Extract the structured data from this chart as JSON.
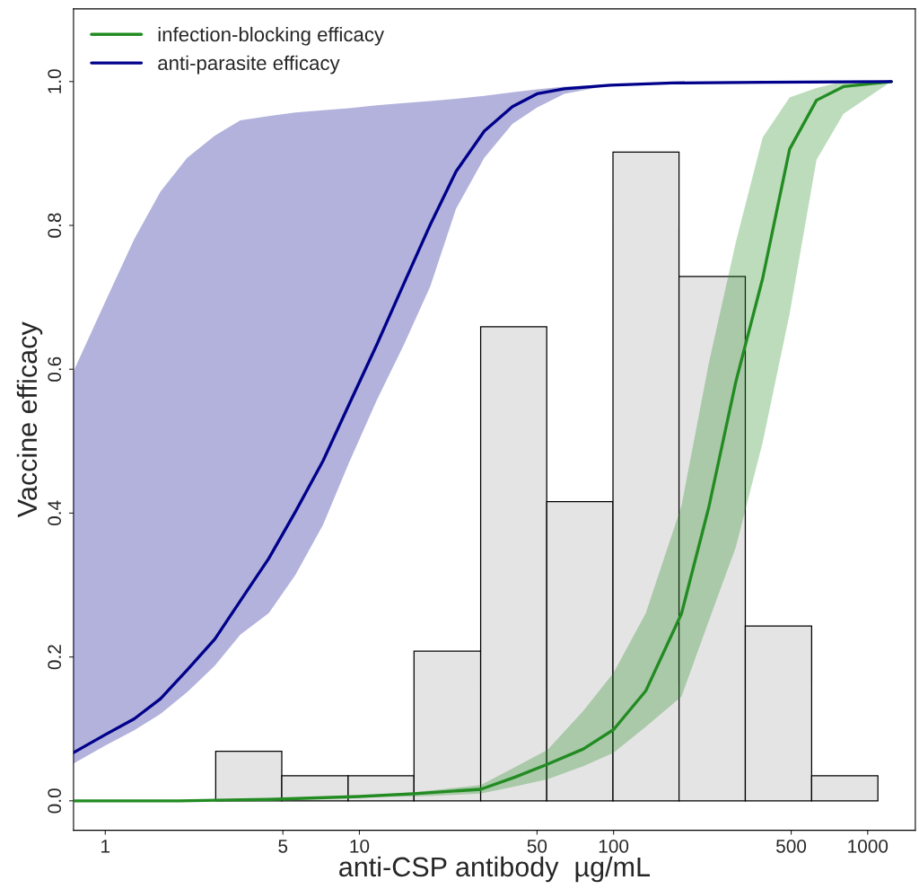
{
  "chart_data": {
    "type": "histogram",
    "xlabel": "anti-CSP antibody  µg/mL",
    "ylabel": "Vaccine efficacy",
    "log": "x",
    "grid": false,
    "legend": "top left",
    "color": "#e4e4e4",
    "bins": [
      2.72,
      4.95,
      9.03,
      16.4,
      30.0,
      54.6,
      99.5,
      181,
      330,
      602,
      1097
    ],
    "values": [
      0.069,
      0.035,
      0.035,
      0.208,
      0.659,
      0.416,
      0.902,
      0.729,
      0.243,
      0.035
    ],
    "xlim": [
      0.75,
      1540
    ],
    "ylim": [
      -0.041,
      1.101
    ],
    "xticks": [
      1,
      5,
      10,
      50,
      100,
      500,
      1000
    ],
    "yticks": [
      {
        "value": 0,
        "label": "0.0"
      },
      {
        "value": 0.2,
        "label": "0.2"
      },
      {
        "value": 0.4,
        "label": "0.4"
      },
      {
        "value": 0.6,
        "label": "0.6"
      },
      {
        "value": 0.8,
        "label": "0.8"
      },
      {
        "value": 1,
        "label": "1.0"
      }
    ],
    "series": [
      {
        "type": "line",
        "name": "infection-blocking efficacy",
        "color": "#228b22",
        "x": [
          0.75,
          1.95,
          4.4,
          10,
          16.4,
          30,
          41,
          55,
          76,
          100,
          134,
          185,
          237,
          303,
          386,
          493,
          629,
          803,
          1240
        ],
        "values": [
          0,
          0,
          0.002,
          0.006,
          0.01,
          0.016,
          0.033,
          0.051,
          0.072,
          0.099,
          0.153,
          0.26,
          0.408,
          0.583,
          0.726,
          0.906,
          0.974,
          0.993,
          1.0
        ],
        "lower": [
          null,
          null,
          null,
          0.005,
          0.006,
          0.01,
          0.02,
          0.03,
          0.048,
          0.067,
          0.103,
          0.145,
          0.25,
          0.353,
          0.498,
          0.677,
          0.891,
          0.955,
          1.0
        ],
        "upper": [
          null,
          null,
          null,
          0.007,
          0.012,
          0.022,
          0.047,
          0.071,
          0.125,
          0.178,
          0.261,
          0.41,
          0.608,
          0.777,
          0.922,
          0.978,
          0.991,
          1.0,
          1.0
        ]
      },
      {
        "type": "line",
        "name": "anti-parasite efficacy",
        "color": "#00008b",
        "x": [
          0.75,
          1,
          1.3,
          1.65,
          2.1,
          2.7,
          3.4,
          4.4,
          5.6,
          7.2,
          9.1,
          11.7,
          15,
          19,
          24,
          31,
          40,
          50,
          64,
          97,
          170,
          390,
          1240
        ],
        "values": [
          0.067,
          0.092,
          0.114,
          0.142,
          0.182,
          0.225,
          0.278,
          0.337,
          0.402,
          0.473,
          0.551,
          0.634,
          0.72,
          0.801,
          0.875,
          0.931,
          0.965,
          0.983,
          0.99,
          0.995,
          0.998,
          0.999,
          1.0
        ],
        "lower": [
          0.052,
          0.077,
          0.098,
          0.121,
          0.151,
          0.188,
          0.231,
          0.261,
          0.314,
          0.384,
          0.47,
          0.557,
          0.635,
          0.715,
          0.823,
          0.894,
          0.941,
          0.964,
          0.983,
          0.995,
          0.998,
          1.0,
          1.0
        ],
        "upper": [
          0.597,
          0.694,
          0.781,
          0.847,
          0.894,
          0.925,
          0.946,
          0.952,
          0.957,
          0.96,
          0.963,
          0.967,
          0.97,
          0.973,
          0.976,
          0.98,
          0.985,
          0.989,
          0.993,
          0.996,
          0.998,
          0.999,
          1.0
        ]
      }
    ]
  }
}
